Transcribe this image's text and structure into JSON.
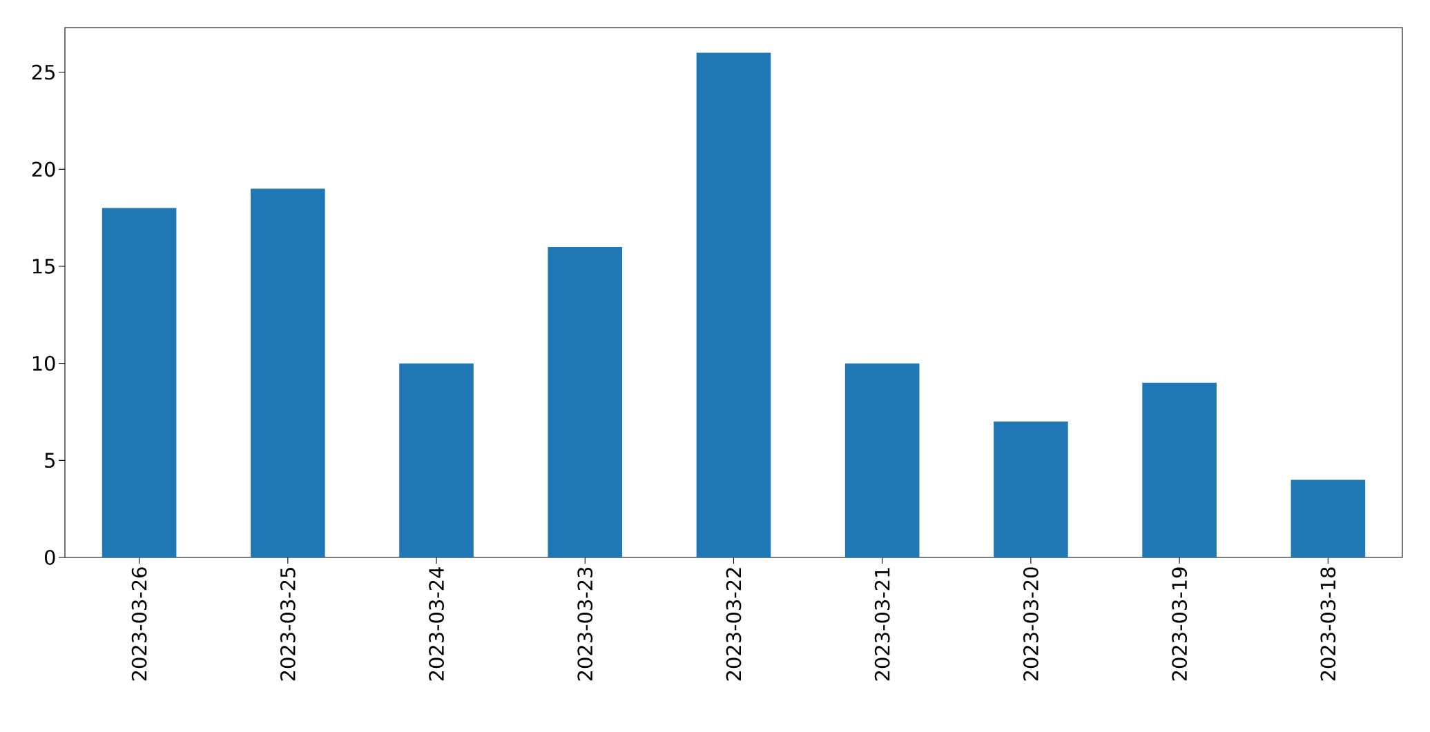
{
  "chart_data": {
    "type": "bar",
    "categories": [
      "2023-03-26",
      "2023-03-25",
      "2023-03-24",
      "2023-03-23",
      "2023-03-22",
      "2023-03-21",
      "2023-03-20",
      "2023-03-19",
      "2023-03-18"
    ],
    "values": [
      18,
      19,
      10,
      16,
      26,
      10,
      7,
      9,
      4
    ],
    "color": "#1f77b4",
    "ylim": [
      0,
      27.3
    ],
    "yticks": [
      0,
      5,
      10,
      15,
      20,
      25
    ]
  }
}
